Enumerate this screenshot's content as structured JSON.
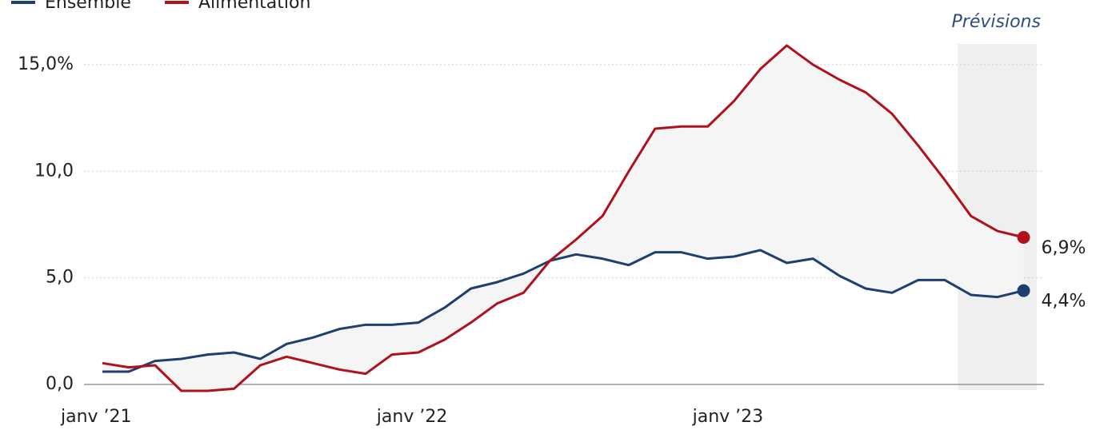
{
  "chart_data": {
    "type": "line",
    "categories": [
      "janv ’21",
      null,
      null,
      null,
      null,
      null,
      null,
      null,
      null,
      null,
      null,
      null,
      "janv ’22",
      null,
      null,
      null,
      null,
      null,
      null,
      null,
      null,
      null,
      null,
      null,
      "janv ’23",
      null,
      null,
      null,
      null,
      null,
      null,
      null,
      null,
      null,
      null,
      null
    ],
    "series": [
      {
        "name": "Ensemble",
        "color": "#1f3f6e",
        "values": [
          0.6,
          0.6,
          1.1,
          1.2,
          1.4,
          1.5,
          1.2,
          1.9,
          2.2,
          2.6,
          2.8,
          2.8,
          2.9,
          3.6,
          4.5,
          4.8,
          5.2,
          5.8,
          6.1,
          5.9,
          5.6,
          6.2,
          6.2,
          5.9,
          6.0,
          6.3,
          5.7,
          5.9,
          5.1,
          4.5,
          4.3,
          4.9,
          4.9,
          4.2,
          4.1,
          4.4
        ],
        "value_labels": [
          null,
          null,
          null,
          null,
          null,
          null,
          null,
          null,
          null,
          null,
          null,
          null,
          null,
          null,
          null,
          null,
          null,
          null,
          null,
          null,
          null,
          null,
          null,
          null,
          null,
          null,
          null,
          null,
          null,
          null,
          null,
          null,
          null,
          null,
          null,
          "4,4%"
        ]
      },
      {
        "name": "Alimentation",
        "color": "#b0121b",
        "values": [
          1.0,
          0.8,
          0.9,
          -0.3,
          -0.3,
          -0.2,
          0.9,
          1.3,
          1.0,
          0.7,
          0.5,
          1.4,
          1.5,
          2.1,
          2.9,
          3.8,
          4.3,
          5.8,
          6.8,
          7.9,
          10.0,
          12.0,
          12.1,
          12.1,
          13.3,
          14.8,
          15.9,
          15.0,
          14.3,
          13.7,
          12.7,
          11.2,
          9.6,
          7.9,
          7.2,
          6.9
        ],
        "value_labels": [
          null,
          null,
          null,
          null,
          null,
          null,
          null,
          null,
          null,
          null,
          null,
          null,
          null,
          null,
          null,
          null,
          null,
          null,
          null,
          null,
          null,
          null,
          null,
          null,
          null,
          null,
          null,
          null,
          null,
          null,
          null,
          null,
          null,
          null,
          null,
          "6,9%"
        ]
      }
    ],
    "ylim": [
      -0.3,
      15.9
    ],
    "yticks": [
      {
        "value": 0,
        "label": "0,0"
      },
      {
        "value": 5,
        "label": "5,0"
      },
      {
        "value": 10,
        "label": "10,0"
      },
      {
        "value": 15,
        "label": "15,0%"
      }
    ],
    "grid": true,
    "forecast": {
      "label": "Prévisions",
      "from": 33,
      "to": 35
    }
  }
}
